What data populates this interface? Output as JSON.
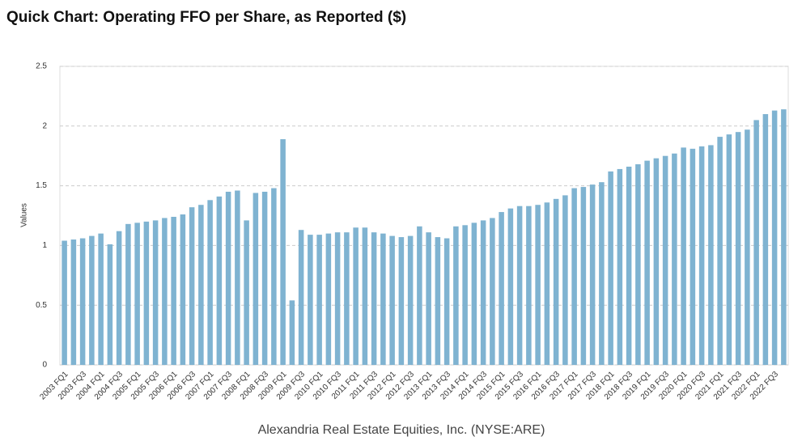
{
  "chart_data": {
    "type": "bar",
    "title": "Quick Chart: Operating FFO per Share, as Reported ($)",
    "ylabel": "Values",
    "caption": "Alexandria Real Estate Equities, Inc. (NYSE:ARE)",
    "categories": [
      "2003 FQ1",
      null,
      "2003 FQ3",
      null,
      "2004 FQ1",
      null,
      "2004 FQ3",
      null,
      "2005 FQ1",
      null,
      "2005 FQ3",
      null,
      "2006 FQ1",
      null,
      "2006 FQ3",
      null,
      "2007 FQ1",
      null,
      "2007 FQ3",
      null,
      "2008 FQ1",
      null,
      "2008 FQ3",
      null,
      "2009 FQ1",
      null,
      "2009 FQ3",
      null,
      "2010 FQ1",
      null,
      "2010 FQ3",
      null,
      "2011 FQ1",
      null,
      "2011 FQ3",
      null,
      "2012 FQ1",
      null,
      "2012 FQ3",
      null,
      "2013 FQ1",
      null,
      "2013 FQ3",
      null,
      "2014 FQ1",
      null,
      "2014 FQ3",
      null,
      "2015 FQ1",
      null,
      "2015 FQ3",
      null,
      "2016 FQ1",
      null,
      "2016 FQ3",
      null,
      "2017 FQ1",
      null,
      "2017 FQ3",
      null,
      "2018 FQ1",
      null,
      "2018 FQ3",
      null,
      "2019 FQ1",
      null,
      "2019 FQ3",
      null,
      "2020 FQ1",
      null,
      "2020 FQ3",
      null,
      "2021 FQ1",
      null,
      "2021 FQ3",
      null,
      "2022 FQ1",
      null,
      "2022 FQ3",
      null
    ],
    "values": [
      1.04,
      1.05,
      1.06,
      1.08,
      1.1,
      1.01,
      1.12,
      1.18,
      1.19,
      1.2,
      1.21,
      1.23,
      1.24,
      1.26,
      1.32,
      1.34,
      1.38,
      1.41,
      1.45,
      1.46,
      1.21,
      1.44,
      1.45,
      1.48,
      1.89,
      0.54,
      1.13,
      1.09,
      1.09,
      1.1,
      1.11,
      1.11,
      1.15,
      1.15,
      1.11,
      1.1,
      1.08,
      1.07,
      1.08,
      1.16,
      1.11,
      1.07,
      1.06,
      1.16,
      1.17,
      1.19,
      1.21,
      1.23,
      1.28,
      1.31,
      1.33,
      1.33,
      1.34,
      1.36,
      1.39,
      1.42,
      1.48,
      1.49,
      1.51,
      1.53,
      1.62,
      1.64,
      1.66,
      1.68,
      1.71,
      1.73,
      1.75,
      1.77,
      1.82,
      1.81,
      1.83,
      1.84,
      1.91,
      1.93,
      1.95,
      1.97,
      2.05,
      2.1,
      2.13,
      2.14
    ],
    "color": "#7fb3d1",
    "ylim": [
      0,
      2.5
    ],
    "yticks": [
      0,
      0.5,
      1,
      1.5,
      2,
      2.5
    ],
    "grid": true
  }
}
